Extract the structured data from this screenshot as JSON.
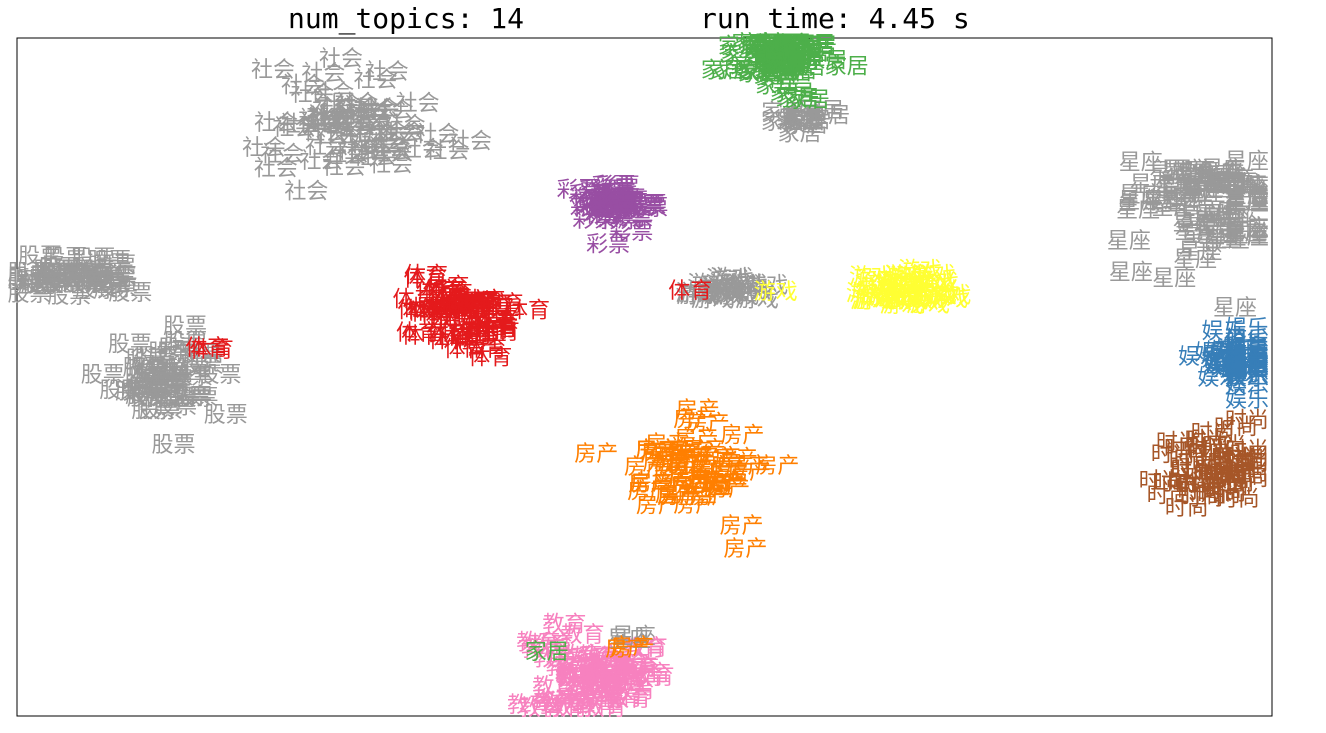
{
  "title": {
    "left": "num_topics: 14",
    "right": "run time: 4.45 s"
  },
  "chart_data": {
    "type": "scatter",
    "description_axes": "t-SNE style embedding, no ticks or axis labels",
    "xlim": [
      0,
      100
    ],
    "ylim": [
      0,
      100
    ],
    "grid": false,
    "ticks": false,
    "point_text_mode": "each point rendered as its category label",
    "colors": {
      "体育": "#e41a1c",
      "娱乐": "#377eb8",
      "家居": "#4daf4a",
      "彩票": "#984ea3",
      "房产": "#ff7f00",
      "游戏": "#ffff33",
      "时尚": "#a65628",
      "教育": "#f781bf",
      "other": "#999999"
    },
    "clusters": [
      {
        "label": "家居",
        "color_key": "家居",
        "cx": 61.0,
        "cy": 97.0,
        "spread_x": 3.0,
        "spread_y": 3.5,
        "n": 50
      },
      {
        "label": "家居",
        "color_key": "other",
        "cx": 62.5,
        "cy": 88.0,
        "spread_x": 1.5,
        "spread_y": 2.0,
        "n": 12
      },
      {
        "label": "家居",
        "color_key": "家居",
        "cx": 61.8,
        "cy": 90.5,
        "spread_x": 0.8,
        "spread_y": 0.8,
        "n": 2
      },
      {
        "label": "社会",
        "color_key": "other",
        "cx": 27.0,
        "cy": 88.0,
        "spread_x": 5.5,
        "spread_y": 6.5,
        "n": 60
      },
      {
        "label": "彩票",
        "color_key": "彩票",
        "cx": 48.0,
        "cy": 75.0,
        "spread_x": 2.5,
        "spread_y": 3.0,
        "n": 35
      },
      {
        "label": "星座",
        "color_key": "other",
        "cx": 95.0,
        "cy": 75.5,
        "spread_x": 5.5,
        "spread_y": 6.0,
        "n": 60
      },
      {
        "label": "股票",
        "color_key": "other",
        "cx": 4.5,
        "cy": 64.5,
        "spread_x": 4.0,
        "spread_y": 2.5,
        "n": 35
      },
      {
        "label": "体育",
        "color_key": "体育",
        "cx": 35.0,
        "cy": 58.5,
        "spread_x": 3.5,
        "spread_y": 4.5,
        "n": 55
      },
      {
        "label": "游戏",
        "color_key": "other",
        "cx": 56.5,
        "cy": 63.0,
        "spread_x": 2.5,
        "spread_y": 1.5,
        "n": 18
      },
      {
        "label": "体育",
        "color_key": "体育",
        "cx": 53.5,
        "cy": 62.5,
        "spread_x": 0.5,
        "spread_y": 0.5,
        "n": 1
      },
      {
        "label": "游戏",
        "color_key": "游戏",
        "cx": 60.0,
        "cy": 62.5,
        "spread_x": 0.5,
        "spread_y": 0.5,
        "n": 1
      },
      {
        "label": "游戏",
        "color_key": "游戏",
        "cx": 71.0,
        "cy": 62.0,
        "spread_x": 3.0,
        "spread_y": 2.5,
        "n": 30
      },
      {
        "label": "娱乐",
        "color_key": "娱乐",
        "cx": 98.5,
        "cy": 52.5,
        "spread_x": 4.0,
        "spread_y": 3.0,
        "n": 40
      },
      {
        "label": "星座",
        "color_key": "other",
        "cx": 97.0,
        "cy": 60.5,
        "spread_x": 0.5,
        "spread_y": 0.5,
        "n": 1
      },
      {
        "label": "股票",
        "color_key": "other",
        "cx": 11.5,
        "cy": 50.0,
        "spread_x": 3.5,
        "spread_y": 5.5,
        "n": 40
      },
      {
        "label": "体育",
        "color_key": "体育",
        "cx": 15.5,
        "cy": 54.0,
        "spread_x": 1.0,
        "spread_y": 0.5,
        "n": 2
      },
      {
        "label": "房产",
        "color_key": "房产",
        "cx": 54.5,
        "cy": 36.0,
        "spread_x": 4.0,
        "spread_y": 6.0,
        "n": 55
      },
      {
        "label": "时尚",
        "color_key": "时尚",
        "cx": 95.0,
        "cy": 36.5,
        "spread_x": 3.5,
        "spread_y": 4.5,
        "n": 45
      },
      {
        "label": "教育",
        "color_key": "教育",
        "cx": 46.0,
        "cy": 6.5,
        "spread_x": 3.5,
        "spread_y": 5.5,
        "n": 55
      },
      {
        "label": "星座",
        "color_key": "other",
        "cx": 49.5,
        "cy": 11.5,
        "spread_x": 1.0,
        "spread_y": 0.5,
        "n": 2
      },
      {
        "label": "家居",
        "color_key": "家居",
        "cx": 42.5,
        "cy": 9.0,
        "spread_x": 0.5,
        "spread_y": 0.5,
        "n": 1
      },
      {
        "label": "房产",
        "color_key": "房产",
        "cx": 49.0,
        "cy": 10.0,
        "spread_x": 0.8,
        "spread_y": 0.5,
        "n": 2
      }
    ],
    "visible_labels": [
      "家居",
      "社会",
      "彩票",
      "星座",
      "股票",
      "体育",
      "游戏",
      "娱乐",
      "房产",
      "时尚",
      "教育"
    ]
  }
}
